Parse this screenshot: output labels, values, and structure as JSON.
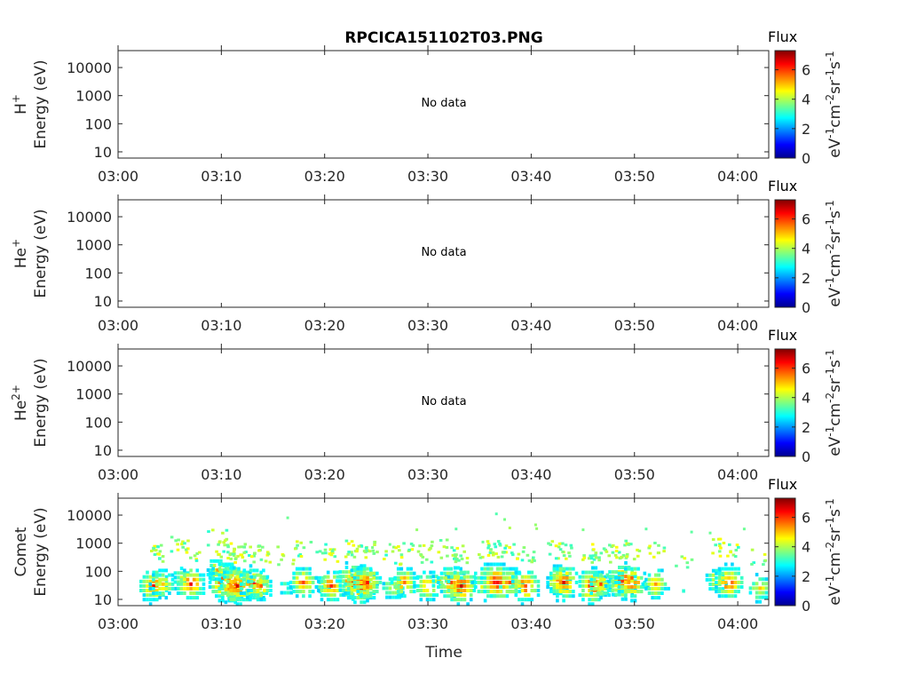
{
  "figure_title": "RPCICA151102T03.PNG",
  "x_axis_label": "Time",
  "colorbar": {
    "label": "Flux",
    "unit": "eV<sup>-1</sup>cm<sup>-2</sup>sr<sup>-1</sup>s<sup>-1</sup>",
    "unit_parts": [
      "eV",
      "-1",
      "cm",
      "-2",
      "sr",
      "-1",
      "s",
      "-1"
    ],
    "ticks": [
      "0",
      "2",
      "4",
      "6"
    ],
    "range": [
      0,
      7.3
    ]
  },
  "chart_data": [
    {
      "type": "heatmap",
      "species_base": "H",
      "species_sup": "+",
      "ylabel": "Energy (eV)",
      "status": "No data",
      "x_ticks": [
        "03:00",
        "03:10",
        "03:20",
        "03:30",
        "03:40",
        "03:50",
        "04:00"
      ],
      "y_ticks": [
        "10",
        "100",
        "1000",
        "10000"
      ],
      "y_scale": "log",
      "cells": []
    },
    {
      "type": "heatmap",
      "species_base": "He",
      "species_sup": "+",
      "ylabel": "Energy (eV)",
      "status": "No data",
      "x_ticks": [
        "03:00",
        "03:10",
        "03:20",
        "03:30",
        "03:40",
        "03:50",
        "04:00"
      ],
      "y_ticks": [
        "10",
        "100",
        "1000",
        "10000"
      ],
      "y_scale": "log",
      "cells": []
    },
    {
      "type": "heatmap",
      "species_base": "He",
      "species_sup": "2+",
      "ylabel": "Energy (eV)",
      "status": "No data",
      "x_ticks": [
        "03:00",
        "03:10",
        "03:20",
        "03:30",
        "03:40",
        "03:50",
        "04:00"
      ],
      "y_ticks": [
        "10",
        "100",
        "1000",
        "10000"
      ],
      "y_scale": "log",
      "cells": []
    },
    {
      "type": "heatmap",
      "species_base": "Comet",
      "species_sup": "",
      "ylabel": "Energy (eV)",
      "status": "",
      "x_ticks": [
        "03:00",
        "03:10",
        "03:20",
        "03:30",
        "03:40",
        "03:50",
        "04:00"
      ],
      "y_ticks": [
        "10",
        "100",
        "1000",
        "10000"
      ],
      "y_scale": "log",
      "time_range_minutes": [
        0,
        63
      ],
      "energy_range_ev": [
        6,
        40000
      ],
      "bursts": [
        {
          "t": 3.3,
          "v": 6.5,
          "e": 30
        },
        {
          "t": 4.2,
          "v": 5.8,
          "e": 35
        },
        {
          "t": 6.0,
          "v": 4.8,
          "e": 60
        },
        {
          "t": 6.9,
          "v": 6.6,
          "e": 35
        },
        {
          "t": 9.5,
          "v": 5.5,
          "e": 110
        },
        {
          "t": 10.3,
          "v": 7.2,
          "e": 40
        },
        {
          "t": 10.9,
          "v": 6.8,
          "e": 35
        },
        {
          "t": 11.4,
          "v": 7.0,
          "e": 30
        },
        {
          "t": 13.0,
          "v": 6.6,
          "e": 35
        },
        {
          "t": 13.7,
          "v": 6.0,
          "e": 30
        },
        {
          "t": 16.0,
          "v": 4.5,
          "e": 25
        },
        {
          "t": 17.8,
          "v": 6.3,
          "e": 40
        },
        {
          "t": 19.7,
          "v": 4.9,
          "e": 40
        },
        {
          "t": 20.5,
          "v": 6.4,
          "e": 30
        },
        {
          "t": 22.6,
          "v": 6.8,
          "e": 45
        },
        {
          "t": 23.4,
          "v": 7.1,
          "e": 35
        },
        {
          "t": 24.0,
          "v": 6.5,
          "e": 40
        },
        {
          "t": 26.5,
          "v": 5.5,
          "e": 25
        },
        {
          "t": 27.6,
          "v": 6.2,
          "e": 40
        },
        {
          "t": 29.8,
          "v": 6.1,
          "e": 30
        },
        {
          "t": 31.0,
          "v": 5.0,
          "e": 45
        },
        {
          "t": 32.1,
          "v": 6.4,
          "e": 40
        },
        {
          "t": 33.1,
          "v": 6.9,
          "e": 30
        },
        {
          "t": 35.7,
          "v": 6.8,
          "e": 40
        },
        {
          "t": 36.6,
          "v": 7.1,
          "e": 40
        },
        {
          "t": 37.8,
          "v": 6.1,
          "e": 40
        },
        {
          "t": 39.3,
          "v": 6.6,
          "e": 30
        },
        {
          "t": 42.4,
          "v": 6.0,
          "e": 50
        },
        {
          "t": 43.0,
          "v": 6.9,
          "e": 40
        },
        {
          "t": 45.8,
          "v": 6.8,
          "e": 30
        },
        {
          "t": 46.6,
          "v": 6.0,
          "e": 35
        },
        {
          "t": 48.0,
          "v": 5.2,
          "e": 30
        },
        {
          "t": 48.7,
          "v": 6.8,
          "e": 45
        },
        {
          "t": 49.6,
          "v": 6.7,
          "e": 40
        },
        {
          "t": 51.9,
          "v": 6.0,
          "e": 35
        },
        {
          "t": 54.6,
          "v": 3.6,
          "e": 20
        },
        {
          "t": 57.8,
          "v": 5.4,
          "e": 50
        },
        {
          "t": 59.0,
          "v": 6.6,
          "e": 40
        },
        {
          "t": 62.0,
          "v": 5.6,
          "e": 25
        }
      ],
      "sparse_high": [
        {
          "t": 16.3,
          "e": 8000,
          "v": 3.5
        },
        {
          "t": 28.8,
          "e": 3000,
          "v": 3.8
        },
        {
          "t": 36.5,
          "e": 11000,
          "v": 3.3
        },
        {
          "t": 37.3,
          "e": 7000,
          "v": 3.6
        },
        {
          "t": 37.8,
          "e": 3500,
          "v": 4.0
        },
        {
          "t": 40.3,
          "e": 4500,
          "v": 3.8
        },
        {
          "t": 40.4,
          "e": 3300,
          "v": 3.8
        },
        {
          "t": 44.9,
          "e": 3000,
          "v": 3.6
        },
        {
          "t": 51.0,
          "e": 3200,
          "v": 3.4
        },
        {
          "t": 55.4,
          "e": 2500,
          "v": 3.4
        },
        {
          "t": 57.2,
          "e": 2300,
          "v": 3.5
        },
        {
          "t": 60.5,
          "e": 3200,
          "v": 3.5
        },
        {
          "t": 32.6,
          "e": 3200,
          "v": 3.4
        },
        {
          "t": 35.2,
          "e": 1100,
          "v": 3.5
        },
        {
          "t": 36.0,
          "e": 600,
          "v": 3.6
        },
        {
          "t": 26.2,
          "e": 900,
          "v": 3.5
        },
        {
          "t": 24.5,
          "e": 700,
          "v": 3.6
        }
      ]
    }
  ]
}
